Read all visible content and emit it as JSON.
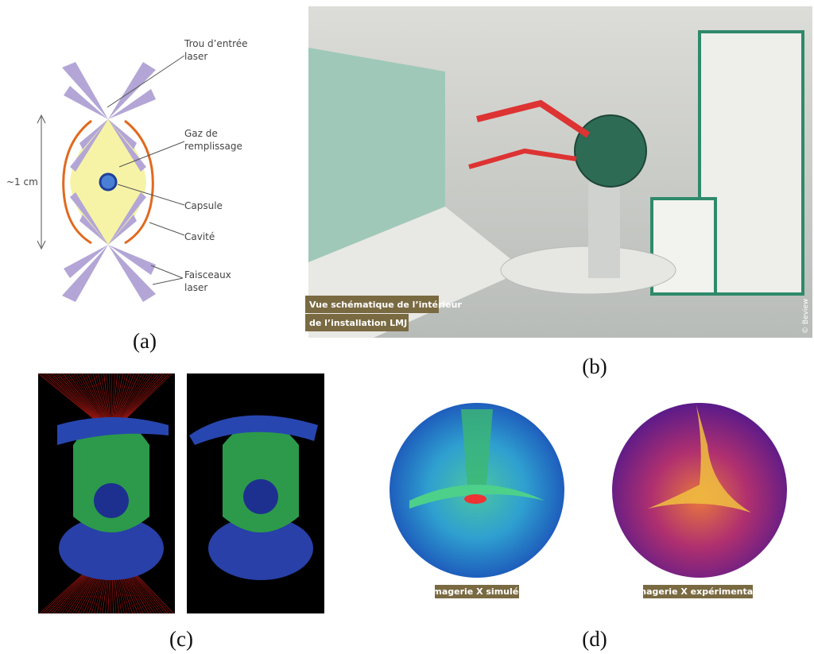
{
  "panel_a": {
    "labels": [
      {
        "lines": [
          "Trou d’entrée",
          "laser"
        ]
      },
      {
        "lines": [
          "Gaz de",
          "remplissage"
        ]
      },
      {
        "lines": [
          "Capsule"
        ]
      },
      {
        "lines": [
          "Cavité"
        ]
      },
      {
        "lines": [
          "Faisceaux",
          "laser"
        ]
      }
    ],
    "scale": "~1 cm",
    "tag": "(a)"
  },
  "panel_b": {
    "caption": [
      "Vue schématique de l’intérieur",
      "de l’installation LMJ"
    ],
    "credit": "© Beview",
    "tag": "(b)"
  },
  "panel_c": {
    "tag": "(c)"
  },
  "panel_d": {
    "captions": [
      "Imagerie X simulée",
      "Imagerie X expérimentale"
    ],
    "tag": "(d)"
  }
}
